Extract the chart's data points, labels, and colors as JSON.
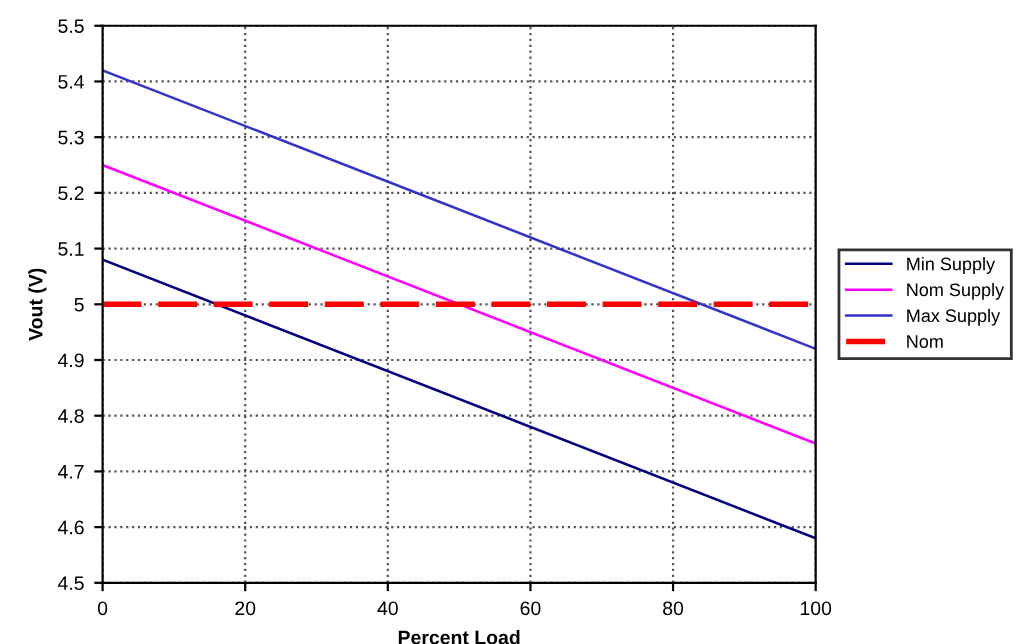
{
  "chart_data": {
    "type": "line",
    "xlabel": "Percent Load",
    "ylabel": "Vout (V)",
    "x": [
      0,
      100
    ],
    "series": [
      {
        "name": "Min Supply",
        "color": "#000080",
        "values": [
          5.08,
          4.58
        ]
      },
      {
        "name": "Nom Supply",
        "color": "#ff00ff",
        "values": [
          5.25,
          4.75
        ]
      },
      {
        "name": "Max Supply",
        "color": "#3333cc",
        "values": [
          5.42,
          4.92
        ]
      },
      {
        "name": "Nom",
        "color": "#ff0000",
        "values": [
          5.0,
          5.0
        ],
        "line_style": "dashed"
      }
    ],
    "xlim": [
      0,
      100
    ],
    "xticks": [
      0,
      20,
      40,
      60,
      80,
      100
    ],
    "ylim": [
      4.5,
      5.5
    ],
    "yticks": [
      4.5,
      4.6,
      4.7,
      4.8,
      4.9,
      5,
      5.1,
      5.2,
      5.3,
      5.4,
      5.5
    ],
    "grid": true,
    "legend": "right",
    "marker": "none",
    "line_style": "solid"
  }
}
